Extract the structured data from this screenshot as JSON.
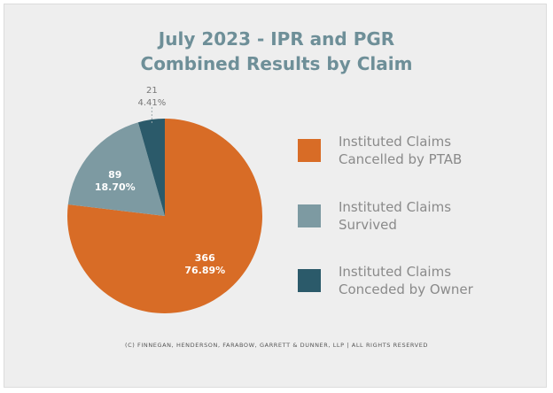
{
  "title": "July 2023 - IPR and PGR\nCombined Results by Claim",
  "chart_data": {
    "type": "pie",
    "slices": [
      {
        "label": "Instituted Claims Cancelled by PTAB",
        "legend": "Instituted Claims\nCancelled by PTAB",
        "value": 366,
        "percent": "76.89%",
        "color": "#d86c26"
      },
      {
        "label": "Instituted Claims Survived",
        "legend": "Instituted Claims\nSurvived",
        "value": 89,
        "percent": "18.70%",
        "color": "#7d9aa2"
      },
      {
        "label": "Instituted Claims Conceded by Owner",
        "legend": "Instituted Claims\nConceded by Owner",
        "value": 21,
        "percent": "4.41%",
        "color": "#2b5a6a"
      }
    ],
    "start": "12 o'clock",
    "direction": "clockwise"
  },
  "footer": "(C) FINNEGAN, HENDERSON, FARABOW, GARRETT & DUNNER, LLP | ALL RIGHTS RESERVED",
  "colors": {
    "title": "#6e8f98",
    "legend_text": "#8a8a8a",
    "background": "#eeeeee"
  }
}
